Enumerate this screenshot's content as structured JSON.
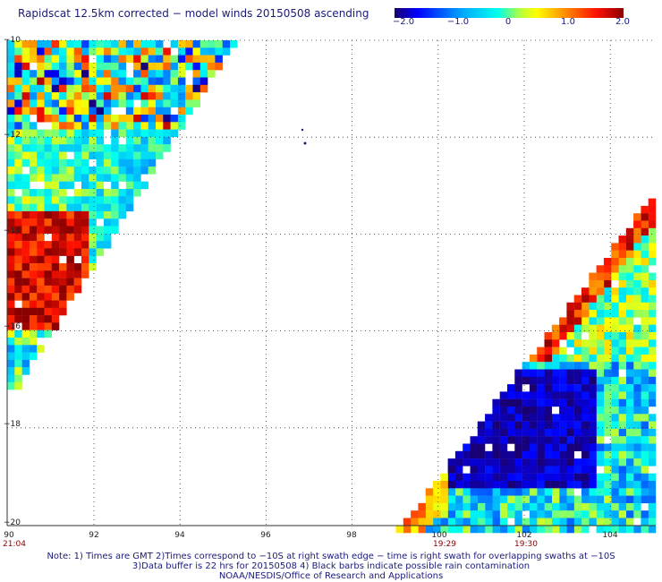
{
  "title": "Rapidscat 12.5km corrected − model winds 20150508 ascending",
  "colorbar": {
    "ticks": [
      "−2.0",
      "−1.0",
      "0",
      "1.0",
      "2.0"
    ],
    "range": [
      -2.0,
      2.0
    ],
    "colors": [
      "#1a006e",
      "#0000ff",
      "#00aaff",
      "#00ffee",
      "#b4ff3c",
      "#ffff00",
      "#ff8800",
      "#ff1100",
      "#8b0000"
    ]
  },
  "map": {
    "x_ticks": [
      "90",
      "92",
      "94",
      "96",
      "98",
      "100",
      "102",
      "104"
    ],
    "y_ticks": [
      "−10",
      "−12",
      "−14",
      "−16",
      "−18",
      "−20"
    ],
    "lon_range": [
      90,
      105
    ],
    "lat_range": [
      -20,
      -10
    ],
    "grid": "dotted",
    "times": [
      {
        "lon": 90,
        "label": "21:04"
      },
      {
        "lon": 100,
        "label": "19:29"
      },
      {
        "lon": 102,
        "label": "19:30"
      }
    ]
  },
  "footnotes": [
    "Note: 1) Times are GMT 2)Times correspond to −10S at right swath edge − time is right swath for overlapping swaths at −10S",
    "3)Data buffer is 22 hrs for 20150508 4) Black barbs indicate possible rain contamination",
    "NOAA/NESDIS/Office of Research and Applications"
  ]
}
